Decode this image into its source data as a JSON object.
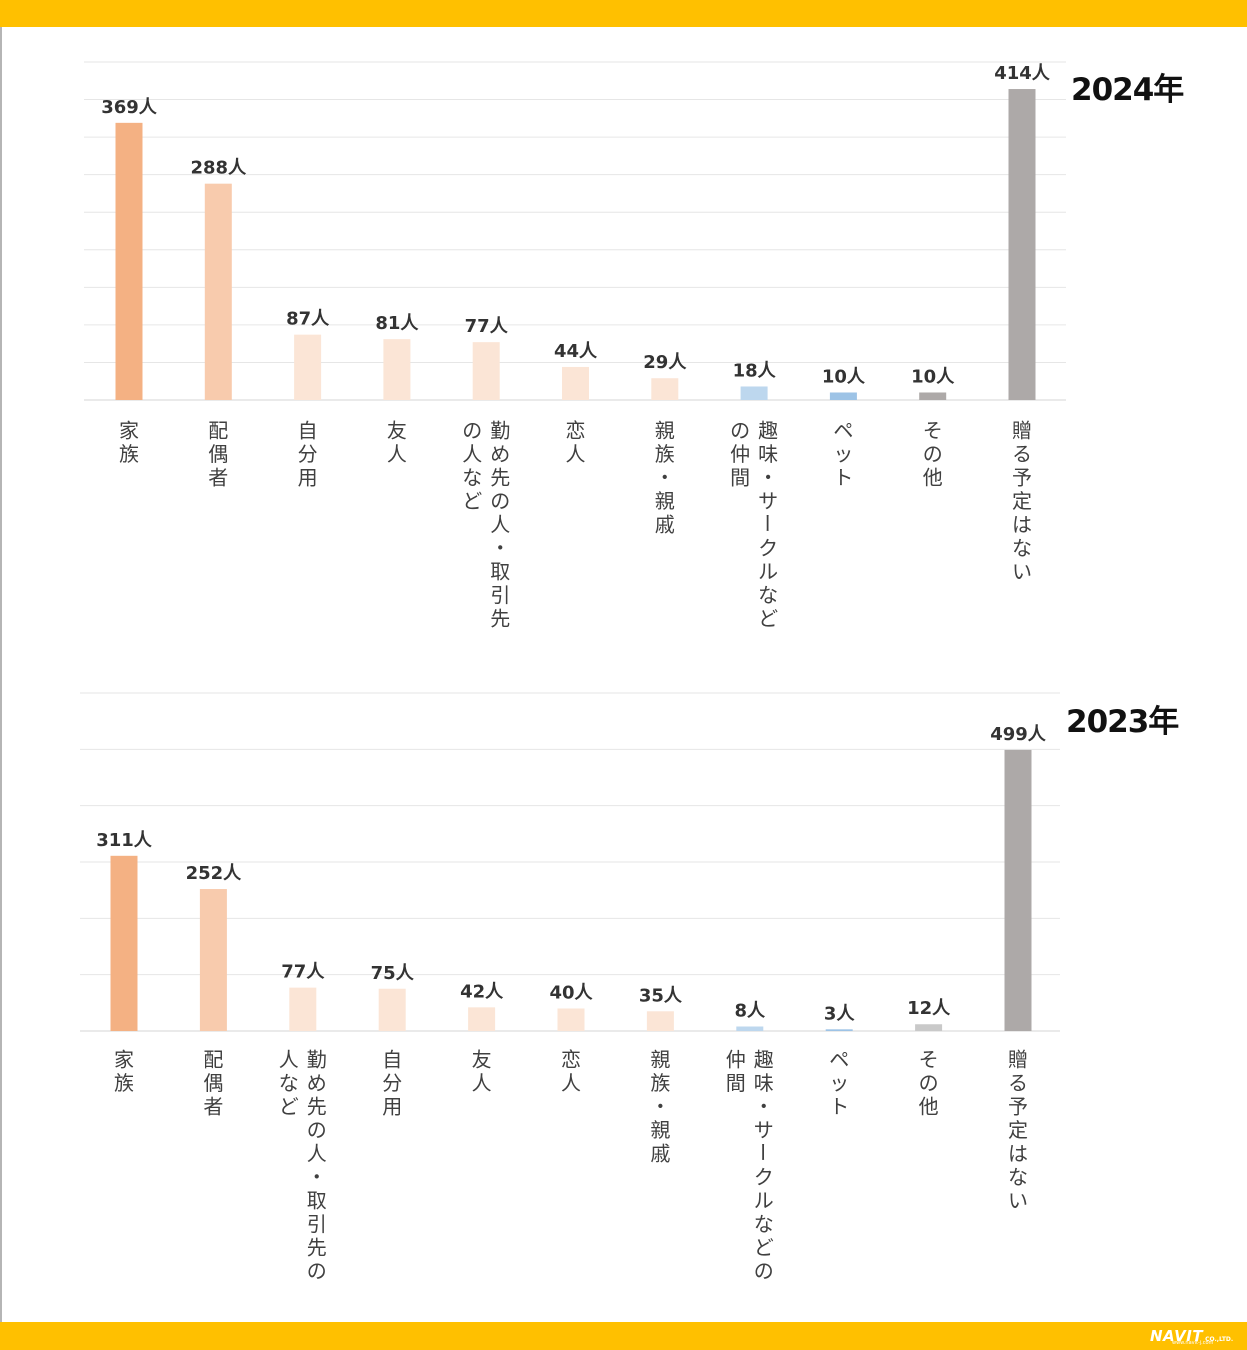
{
  "branding": {
    "logo_text": "NAVIT",
    "logo_suffix": "CO.,LTD.",
    "url": "www.navit-j.com"
  },
  "colors": {
    "band": "#FFC000",
    "family": "#F4B183",
    "spouse": "#F8CBAD",
    "light_peach": "#FBE5D6",
    "light_blue": "#BDD7EE",
    "mid_blue": "#9DC3E6",
    "gray": "#ADA9A8",
    "light_gray": "#C9C9C9"
  },
  "chart_data": [
    {
      "type": "bar",
      "title": "2024年",
      "unit": "人",
      "ylim": [
        0,
        450
      ],
      "grid": true,
      "categories": [
        "家族",
        "配偶者",
        "自分用",
        "友人",
        "勤め先の人・取引先の人など",
        "恋人",
        "親族・親戚",
        "趣味・サークルなどの仲間",
        "ペット",
        "その他",
        "贈る予定はない"
      ],
      "values": [
        369,
        288,
        87,
        81,
        77,
        44,
        29,
        18,
        10,
        10,
        414
      ],
      "value_labels": [
        "369人",
        "288人",
        "87人",
        "81人",
        "77人",
        "44人",
        "29人",
        "18人",
        "10人",
        "10人",
        "414人"
      ],
      "category_label_lines": [
        [
          "家族"
        ],
        [
          "配偶者"
        ],
        [
          "自分用"
        ],
        [
          "友人"
        ],
        [
          "勤め先の人・取引先",
          "の人など"
        ],
        [
          "恋人"
        ],
        [
          "親族・親戚"
        ],
        [
          "趣味・サークルなど",
          "の仲間"
        ],
        [
          "ペット"
        ],
        [
          "その他"
        ],
        [
          "贈る予定はない"
        ]
      ],
      "bar_colors": [
        "#F4B183",
        "#F8CBAD",
        "#FBE5D6",
        "#FBE5D6",
        "#FBE5D6",
        "#FBE5D6",
        "#FBE5D6",
        "#BDD7EE",
        "#9DC3E6",
        "#ADA9A8",
        "#ADA9A8"
      ]
    },
    {
      "type": "bar",
      "title": "2023年",
      "unit": "人",
      "ylim": [
        0,
        600
      ],
      "grid": true,
      "categories": [
        "家族",
        "配偶者",
        "勤め先の人・取引先の人など",
        "自分用",
        "友人",
        "恋人",
        "親族・親戚",
        "趣味・サークルなどの仲間",
        "ペット",
        "その他",
        "贈る予定はない"
      ],
      "values": [
        311,
        252,
        77,
        75,
        42,
        40,
        35,
        8,
        3,
        12,
        499
      ],
      "value_labels": [
        "311人",
        "252人",
        "77人",
        "75人",
        "42人",
        "40人",
        "35人",
        "8人",
        "3人",
        "12人",
        "499人"
      ],
      "category_label_lines": [
        [
          "家族"
        ],
        [
          "配偶者"
        ],
        [
          "勤め先の人・取引先の",
          "人など"
        ],
        [
          "自分用"
        ],
        [
          "友人"
        ],
        [
          "恋人"
        ],
        [
          "親族・親戚"
        ],
        [
          "趣味・サークルなどの",
          "仲間"
        ],
        [
          "ペット"
        ],
        [
          "その他"
        ],
        [
          "贈る予定はない"
        ]
      ],
      "bar_colors": [
        "#F4B183",
        "#F8CBAD",
        "#FBE5D6",
        "#FBE5D6",
        "#FBE5D6",
        "#FBE5D6",
        "#FBE5D6",
        "#BDD7EE",
        "#9DC3E6",
        "#C9C9C9",
        "#ADA9A8"
      ]
    }
  ]
}
